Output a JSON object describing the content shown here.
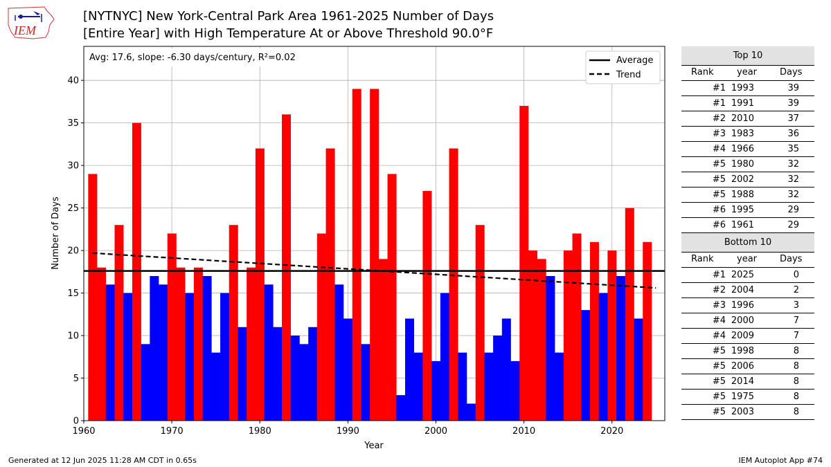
{
  "header": {
    "logo_text": "IEM",
    "title_line1": "[NYTNYC] New York-Central Park Area 1961-2025 Number of Days",
    "title_line2": "[Entire Year] with High Temperature At or Above Threshold 90.0°F"
  },
  "footer": {
    "generated": "Generated at 12 Jun 2025 11:28 AM CDT in 0.65s",
    "app": "IEM Autoplot App #74"
  },
  "chart_data": {
    "type": "bar",
    "title": "[NYTNYC] New York-Central Park Area 1961-2025 Number of Days [Entire Year] with High Temperature At or Above Threshold 90.0°F",
    "xlabel": "Year",
    "ylabel": "Number of Days",
    "annotation": "Avg: 17.6, slope: -6.30 days/century, R²=0.02",
    "xlim": [
      1960,
      2026
    ],
    "ylim": [
      0,
      44
    ],
    "xticks": [
      1960,
      1970,
      1980,
      1990,
      2000,
      2010,
      2020
    ],
    "yticks": [
      0,
      5,
      10,
      15,
      20,
      25,
      30,
      35,
      40
    ],
    "grid": true,
    "legend": {
      "placement": "top-right",
      "entries": [
        "Average",
        "Trend"
      ]
    },
    "average": 17.6,
    "trend": {
      "x": [
        1961,
        2025
      ],
      "y": [
        19.7,
        15.6
      ]
    },
    "colors": {
      "above": "#ff0000",
      "below": "#0000ff",
      "line": "#000000",
      "grid": "#b0b0b0"
    },
    "years": [
      1961,
      1962,
      1963,
      1964,
      1965,
      1966,
      1967,
      1968,
      1969,
      1970,
      1971,
      1972,
      1973,
      1974,
      1975,
      1976,
      1977,
      1978,
      1979,
      1980,
      1981,
      1982,
      1983,
      1984,
      1985,
      1986,
      1987,
      1988,
      1989,
      1990,
      1991,
      1992,
      1993,
      1994,
      1995,
      1996,
      1997,
      1998,
      1999,
      2000,
      2001,
      2002,
      2003,
      2004,
      2005,
      2006,
      2007,
      2008,
      2009,
      2010,
      2011,
      2012,
      2013,
      2014,
      2015,
      2016,
      2017,
      2018,
      2019,
      2020,
      2021,
      2022,
      2023,
      2024,
      2025
    ],
    "values": [
      29,
      18,
      16,
      23,
      15,
      35,
      9,
      17,
      16,
      22,
      18,
      15,
      18,
      17,
      8,
      15,
      23,
      11,
      18,
      32,
      16,
      11,
      36,
      10,
      9,
      11,
      22,
      32,
      16,
      12,
      39,
      9,
      39,
      19,
      29,
      3,
      12,
      8,
      27,
      7,
      15,
      32,
      8,
      2,
      23,
      8,
      10,
      12,
      7,
      37,
      20,
      19,
      17,
      8,
      20,
      22,
      13,
      21,
      15,
      20,
      17,
      25,
      12,
      21,
      0
    ]
  },
  "top10": {
    "title": "Top 10",
    "columns": [
      "Rank",
      "year",
      "Days"
    ],
    "rows": [
      [
        "#1",
        "1993",
        "39"
      ],
      [
        "#1",
        "1991",
        "39"
      ],
      [
        "#2",
        "2010",
        "37"
      ],
      [
        "#3",
        "1983",
        "36"
      ],
      [
        "#4",
        "1966",
        "35"
      ],
      [
        "#5",
        "1980",
        "32"
      ],
      [
        "#5",
        "2002",
        "32"
      ],
      [
        "#5",
        "1988",
        "32"
      ],
      [
        "#6",
        "1995",
        "29"
      ],
      [
        "#6",
        "1961",
        "29"
      ]
    ]
  },
  "bottom10": {
    "title": "Bottom 10",
    "columns": [
      "Rank",
      "year",
      "Days"
    ],
    "rows": [
      [
        "#1",
        "2025",
        "0"
      ],
      [
        "#2",
        "2004",
        "2"
      ],
      [
        "#3",
        "1996",
        "3"
      ],
      [
        "#4",
        "2000",
        "7"
      ],
      [
        "#4",
        "2009",
        "7"
      ],
      [
        "#5",
        "1998",
        "8"
      ],
      [
        "#5",
        "2006",
        "8"
      ],
      [
        "#5",
        "2014",
        "8"
      ],
      [
        "#5",
        "1975",
        "8"
      ],
      [
        "#5",
        "2003",
        "8"
      ]
    ]
  }
}
